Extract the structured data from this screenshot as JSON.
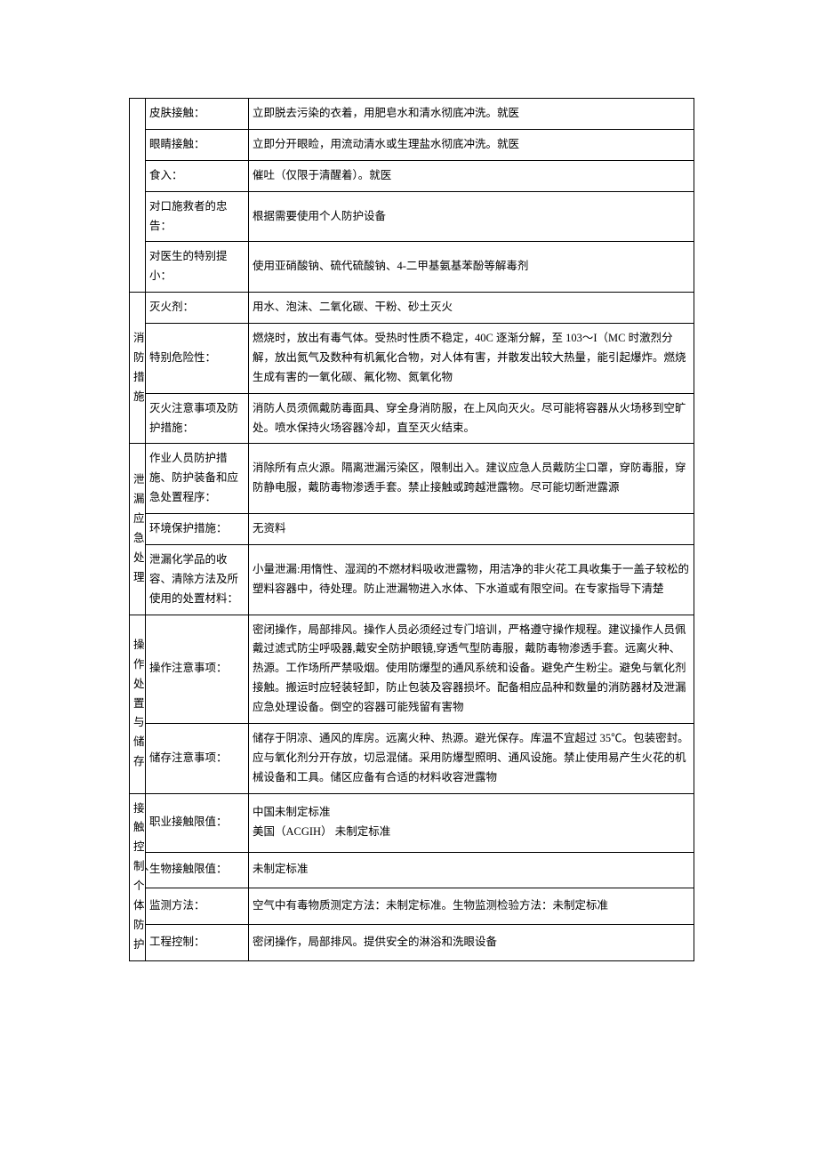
{
  "first_group": {
    "rows": [
      {
        "label": "皮肤接触：",
        "value": "立即脱去污染的衣着，用肥皂水和清水彻底冲洗。就医"
      },
      {
        "label": "眼睛接触：",
        "value": "立即分开眼睑，用流动清水或生理盐水彻底冲洗。就医"
      },
      {
        "label": "食入：",
        "value": "催吐（仅限于清醒着）。就医"
      },
      {
        "label": "对口施救者的忠告：",
        "value": "根据需要使用个人防护设备"
      },
      {
        "label": "对医生的特别提小：",
        "value": "使用亚硝酸钠、硫代硫酸钠、4-二甲基氨基苯酚等解毒剂"
      }
    ]
  },
  "fire": {
    "section": "消防措施",
    "rows": [
      {
        "label": "灭火剂：",
        "value": "用水、泡沫、二氧化碳、干粉、砂土灭火"
      },
      {
        "label": "特别危险性：",
        "value": "燃烧时，放出有毒气体。受热时性质不稳定，40C 逐渐分解，至 103～I（MC 时激烈分解，放出氮气及数种有机氟化合物，对人体有害，并散发出较大热量，能引起爆炸。燃烧生成有害的一氧化碳、氟化物、氮氧化物"
      },
      {
        "label": "灭火注意事项及防护措施：",
        "value": "消防人员须佩戴防毒面具、穿全身消防服，在上风向灭火。尽可能将容器从火场移到空旷处。喷水保持火场容器冷却，直至灭火结束。"
      }
    ]
  },
  "leak": {
    "section": "泄漏应急处理",
    "rows": [
      {
        "label": "作业人员防护措施、防护装备和应急处置程序：",
        "value": "消除所有点火源。隔离泄漏污染区，限制出入。建议应急人员戴防尘口罩，穿防毒服，穿防静电服，戴防毒物渗透手套。禁止接触或跨越泄露物。尽可能切断泄露源"
      },
      {
        "label": "环境保护措施：",
        "value": "无资料"
      },
      {
        "label": "泄漏化学品的收容、清除方法及所使用的处置材料：",
        "value": "小量泄漏:用惰性、湿润的不燃材料吸收泄露物，用洁净的非火花工具收集于一盖子较松的塑料容器中，待处理。防止泄漏物进入水体、下水道或有限空间。在专家指导下清楚"
      }
    ]
  },
  "handling": {
    "section": "操作处置与储存",
    "rows": [
      {
        "label": "操作注意事项：",
        "value": "密闭操作，局部排风。操作人员必须经过专门培训，严格遵守操作规程。建议操作人员佩戴过滤式防尘呼吸器,戴安全防护眼镜,穿透气型防毒服，戴防毒物渗透手套。远离火种、热源。工作场所严禁吸烟。使用防爆型的通风系统和设备。避免产生粉尘。避免与氧化剂接触。搬运时应轻装轻卸，防止包装及容器损坏。配备相应品种和数量的消防器材及泄漏应急处理设备。倒空的容器可能残留有害物"
      },
      {
        "label": "储存注意事项：",
        "value": "储存于阴凉、通风的库房。远离火种、热源。避光保存。库温不宜超过 35℃。包装密封。应与氧化剂分开存放，切忌混储。采用防爆型照明、通风设施。禁止使用易产生火花的机械设备和工具。储区应备有合适的材料收容泄露物"
      }
    ]
  },
  "exposure": {
    "section": "接触控制、个体防护",
    "rows": [
      {
        "label": "职业接触限值：",
        "value": "中国未制定标准\n美国（ACGIH）  未制定标准"
      },
      {
        "label": "生物接触限值：",
        "value": "未制定标准"
      },
      {
        "label": "监测方法：",
        "value": "空气中有毒物质测定方法：未制定标准。生物监测检验方法：未制定标准"
      },
      {
        "label": "工程控制：",
        "value": "密闭操作，局部排风。提供安全的淋浴和洗眼设备"
      }
    ]
  }
}
